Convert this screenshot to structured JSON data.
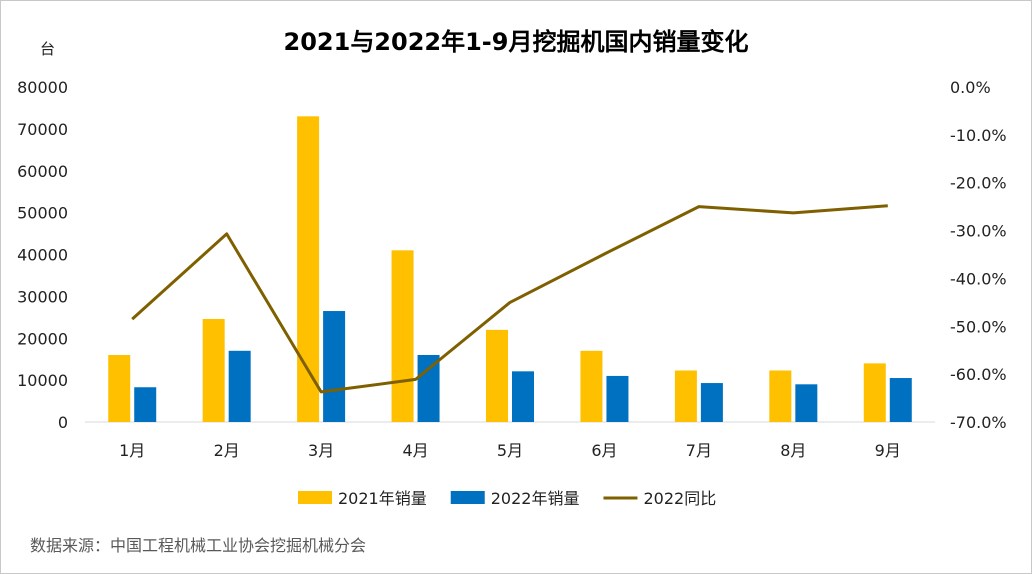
{
  "chart_data": {
    "type": "bar",
    "title": "2021与2022年1-9月挖掘机国内销量变化",
    "unit_label": "台",
    "categories": [
      "1月",
      "2月",
      "3月",
      "4月",
      "5月",
      "6月",
      "7月",
      "8月",
      "9月"
    ],
    "series": [
      {
        "name": "2021年销量",
        "type": "bar",
        "axis": "left",
        "color": "#FFC000",
        "values": [
          16000,
          24600,
          73000,
          41000,
          22000,
          17000,
          12300,
          12300,
          14000
        ]
      },
      {
        "name": "2022年销量",
        "type": "bar",
        "axis": "left",
        "color": "#0070C0",
        "values": [
          8300,
          17000,
          26500,
          16000,
          12100,
          11000,
          9300,
          9000,
          10500
        ]
      },
      {
        "name": "2022同比",
        "type": "line",
        "axis": "right",
        "color": "#7F6000",
        "values": [
          -48.5,
          -30.7,
          -63.7,
          -61.1,
          -45.0,
          -34.9,
          -25.0,
          -26.3,
          -24.8
        ]
      }
    ],
    "left_axis": {
      "min": 0,
      "max": 80000,
      "ticks": [
        "0",
        "10000",
        "20000",
        "30000",
        "40000",
        "50000",
        "60000",
        "70000",
        "80000"
      ]
    },
    "right_axis": {
      "min": -70,
      "max": 0,
      "ticks": [
        "0.0%",
        "-10.0%",
        "-20.0%",
        "-30.0%",
        "-40.0%",
        "-50.0%",
        "-60.0%",
        "-70.0%"
      ]
    },
    "legend_position": "bottom",
    "grid": false
  },
  "source": "数据来源：中国工程机械工业协会挖掘机械分会"
}
